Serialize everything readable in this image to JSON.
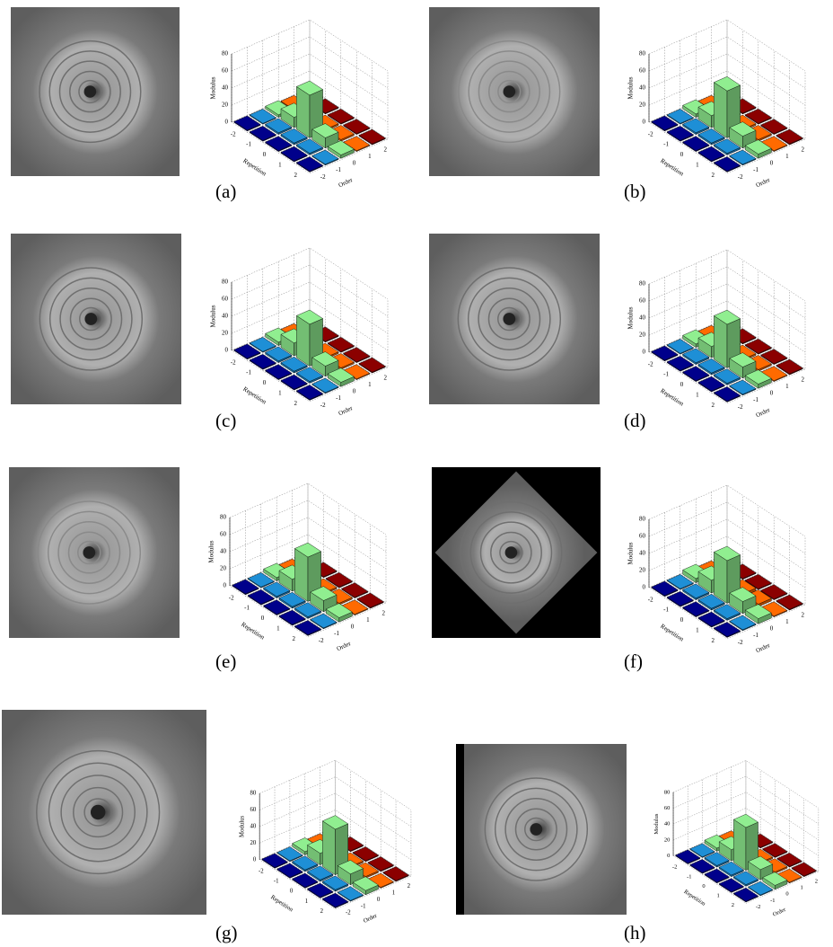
{
  "chart_data": [
    {
      "type": "bar3d",
      "caption": "(a)",
      "xlabel": "Repetition",
      "ylabel": "Order",
      "zlabel": "Modulus",
      "xticks": [
        -2,
        -1,
        0,
        1,
        2
      ],
      "yticks": [
        -2,
        -1,
        0,
        1,
        2
      ],
      "zlim": [
        0,
        80
      ],
      "zticks": [
        0,
        20,
        40,
        60,
        80
      ],
      "grid": true,
      "colors": [
        "#00008b",
        "#1e8fd6",
        "#90ee90",
        "#ff6a00",
        "#8b0000"
      ],
      "values": [
        [
          1,
          1,
          1,
          1,
          1
        ],
        [
          1,
          2,
          2,
          2,
          1
        ],
        [
          3,
          12,
          50,
          12,
          4
        ],
        [
          1,
          2,
          2,
          2,
          1
        ],
        [
          1,
          1,
          1,
          1,
          1
        ]
      ]
    },
    {
      "type": "bar3d",
      "caption": "(b)",
      "xlabel": "Repetition",
      "ylabel": "Order",
      "zlabel": "Modulus",
      "xticks": [
        -2,
        -1,
        0,
        1,
        2
      ],
      "yticks": [
        -2,
        -1,
        0,
        1,
        2
      ],
      "zlim": [
        0,
        80
      ],
      "zticks": [
        0,
        20,
        40,
        60,
        80
      ],
      "grid": true,
      "colors": [
        "#00008b",
        "#1e8fd6",
        "#90ee90",
        "#ff6a00",
        "#8b0000"
      ],
      "values": [
        [
          1,
          1,
          1,
          1,
          1
        ],
        [
          1,
          2,
          2,
          2,
          1
        ],
        [
          4,
          14,
          55,
          14,
          5
        ],
        [
          1,
          2,
          2,
          2,
          1
        ],
        [
          1,
          1,
          1,
          1,
          1
        ]
      ]
    },
    {
      "type": "bar3d",
      "caption": "(c)",
      "xlabel": "Repetition",
      "ylabel": "Order",
      "zlabel": "Modulus",
      "xticks": [
        -2,
        -1,
        0,
        1,
        2
      ],
      "yticks": [
        -2,
        -1,
        0,
        1,
        2
      ],
      "zlim": [
        0,
        80
      ],
      "zticks": [
        0,
        20,
        40,
        60,
        80
      ],
      "grid": true,
      "colors": [
        "#00008b",
        "#1e8fd6",
        "#90ee90",
        "#ff6a00",
        "#8b0000"
      ],
      "values": [
        [
          1,
          1,
          1,
          1,
          1
        ],
        [
          1,
          2,
          2,
          2,
          1
        ],
        [
          4,
          15,
          49,
          12,
          5
        ],
        [
          1,
          2,
          2,
          2,
          1
        ],
        [
          1,
          1,
          1,
          1,
          1
        ]
      ]
    },
    {
      "type": "bar3d",
      "caption": "(d)",
      "xlabel": "Repetition",
      "ylabel": "Order",
      "zlabel": "Modulus",
      "xticks": [
        -2,
        -1,
        0,
        1,
        2
      ],
      "yticks": [
        -2,
        -1,
        0,
        1,
        2
      ],
      "zlim": [
        0,
        80
      ],
      "zticks": [
        0,
        20,
        40,
        60,
        80
      ],
      "grid": true,
      "colors": [
        "#00008b",
        "#1e8fd6",
        "#90ee90",
        "#ff6a00",
        "#8b0000"
      ],
      "values": [
        [
          1,
          1,
          1,
          1,
          1
        ],
        [
          1,
          2,
          2,
          2,
          1
        ],
        [
          4,
          13,
          51,
          13,
          5
        ],
        [
          1,
          2,
          2,
          2,
          1
        ],
        [
          1,
          1,
          1,
          1,
          1
        ]
      ]
    },
    {
      "type": "bar3d",
      "caption": "(e)",
      "xlabel": "Repetition",
      "ylabel": "Order",
      "zlabel": "Modulus",
      "xticks": [
        -2,
        -1,
        0,
        1,
        2
      ],
      "yticks": [
        -2,
        -1,
        0,
        1,
        2
      ],
      "zlim": [
        0,
        80
      ],
      "zticks": [
        0,
        20,
        40,
        60,
        80
      ],
      "grid": true,
      "colors": [
        "#00008b",
        "#1e8fd6",
        "#90ee90",
        "#ff6a00",
        "#8b0000"
      ],
      "values": [
        [
          1,
          1,
          1,
          1,
          1
        ],
        [
          1,
          2,
          2,
          2,
          1
        ],
        [
          4,
          14,
          52,
          13,
          5
        ],
        [
          1,
          2,
          2,
          2,
          1
        ],
        [
          1,
          1,
          1,
          1,
          1
        ]
      ]
    },
    {
      "type": "bar3d",
      "caption": "(f)",
      "xlabel": "Repetition",
      "ylabel": "Order",
      "zlabel": "Modulus",
      "xticks": [
        -2,
        -1,
        0,
        1,
        2
      ],
      "yticks": [
        -2,
        -1,
        0,
        1,
        2
      ],
      "zlim": [
        0,
        80
      ],
      "zticks": [
        0,
        20,
        40,
        60,
        80
      ],
      "grid": true,
      "colors": [
        "#00008b",
        "#1e8fd6",
        "#90ee90",
        "#ff6a00",
        "#8b0000"
      ],
      "values": [
        [
          1,
          1,
          1,
          1,
          1
        ],
        [
          1,
          2,
          2,
          2,
          1
        ],
        [
          5,
          15,
          50,
          14,
          6
        ],
        [
          1,
          3,
          3,
          3,
          1
        ],
        [
          1,
          1,
          1,
          1,
          1
        ]
      ]
    },
    {
      "type": "bar3d",
      "caption": "(g)",
      "xlabel": "Repetition",
      "ylabel": "Order",
      "zlabel": "Modulus",
      "xticks": [
        -2,
        -1,
        0,
        1,
        2
      ],
      "yticks": [
        -2,
        -1,
        0,
        1,
        2
      ],
      "zlim": [
        0,
        80
      ],
      "zticks": [
        0,
        20,
        40,
        60,
        80
      ],
      "grid": true,
      "colors": [
        "#00008b",
        "#1e8fd6",
        "#90ee90",
        "#ff6a00",
        "#8b0000"
      ],
      "values": [
        [
          1,
          1,
          1,
          1,
          1
        ],
        [
          1,
          2,
          2,
          2,
          1
        ],
        [
          4,
          14,
          55,
          13,
          5
        ],
        [
          1,
          2,
          2,
          2,
          1
        ],
        [
          1,
          1,
          1,
          1,
          1
        ]
      ]
    },
    {
      "type": "bar3d",
      "caption": "(h)",
      "xlabel": "Repetition",
      "ylabel": "Order",
      "zlabel": "Modulus",
      "xticks": [
        -2,
        -1,
        0,
        1,
        2
      ],
      "yticks": [
        -2,
        -1,
        0,
        1,
        2
      ],
      "zlim": [
        0,
        80
      ],
      "zticks": [
        0,
        20,
        40,
        60,
        80
      ],
      "grid": true,
      "colors": [
        "#00008b",
        "#1e8fd6",
        "#90ee90",
        "#ff6a00",
        "#8b0000"
      ],
      "values": [
        [
          1,
          1,
          1,
          1,
          1
        ],
        [
          1,
          2,
          2,
          2,
          1
        ],
        [
          4,
          14,
          54,
          13,
          5
        ],
        [
          1,
          2,
          2,
          2,
          1
        ],
        [
          1,
          1,
          1,
          1,
          1
        ]
      ]
    }
  ]
}
